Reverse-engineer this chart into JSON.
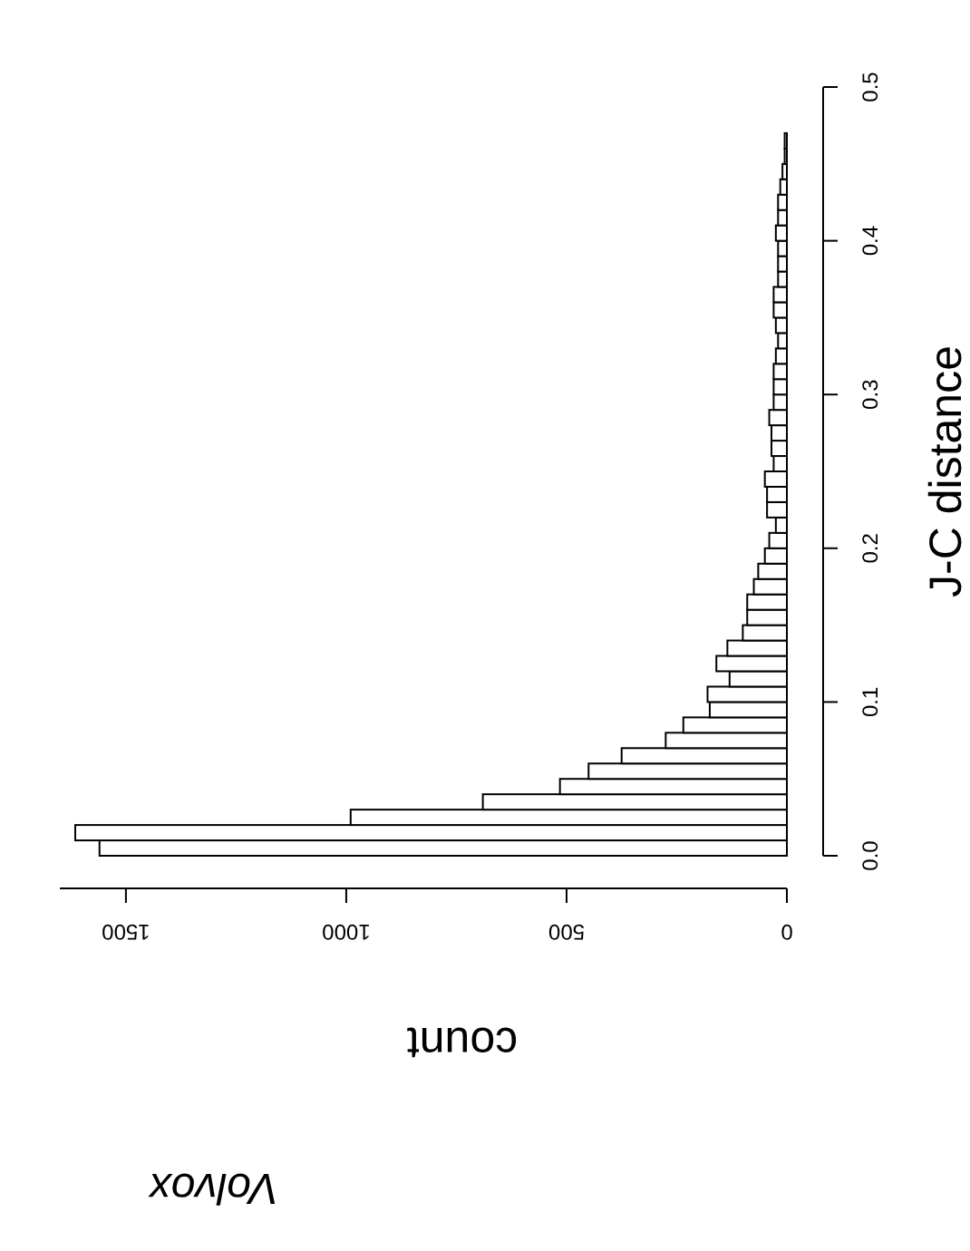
{
  "chart_data": {
    "type": "histogram",
    "orientation": "horizontal",
    "title": "Volvox",
    "xlabel": "count",
    "ylabel": "J-C distance",
    "bins": [
      0,
      0.01,
      0.02,
      0.03,
      0.04,
      0.05,
      0.06,
      0.07,
      0.08,
      0.09,
      0.1,
      0.11,
      0.12,
      0.13,
      0.14,
      0.15,
      0.16,
      0.17,
      0.18,
      0.19,
      0.2,
      0.21,
      0.22,
      0.23,
      0.24,
      0.25,
      0.26,
      0.27,
      0.28,
      0.29,
      0.3,
      0.31,
      0.32,
      0.33,
      0.34,
      0.35,
      0.36,
      0.37,
      0.38,
      0.39,
      0.4,
      0.41,
      0.42,
      0.43,
      0.44,
      0.45,
      0.46,
      0.47
    ],
    "values": [
      1560,
      1615,
      990,
      690,
      515,
      450,
      375,
      275,
      235,
      175,
      180,
      130,
      160,
      135,
      100,
      90,
      90,
      75,
      65,
      50,
      40,
      25,
      45,
      45,
      50,
      30,
      35,
      35,
      40,
      30,
      30,
      30,
      25,
      20,
      25,
      30,
      30,
      20,
      20,
      20,
      25,
      20,
      20,
      15,
      10,
      5,
      5
    ],
    "xlim": [
      1650,
      0
    ],
    "xticks": [
      0,
      500,
      1000,
      1500
    ],
    "ylim": [
      0,
      0.5
    ],
    "yticks": [
      {
        "value": 0,
        "label": "0.0"
      },
      0.1,
      0.2,
      0.3,
      0.4,
      0.5
    ]
  }
}
